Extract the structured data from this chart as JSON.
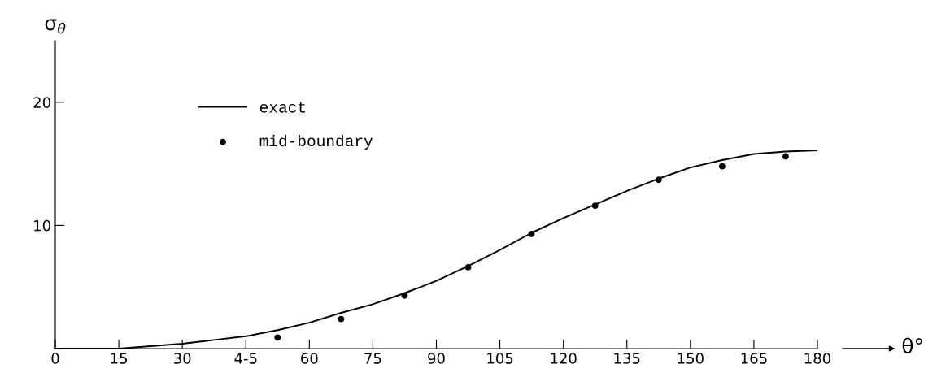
{
  "chart_data": {
    "type": "line",
    "xlabel": "θ°",
    "ylabel": "σ$_{θ}$",
    "xlim": [
      0,
      180
    ],
    "ylim": [
      0,
      25
    ],
    "xticks": [
      0,
      15,
      30,
      {
        "value": 45,
        "label": "4-5"
      },
      60,
      75,
      90,
      105,
      120,
      135,
      150,
      165,
      180
    ],
    "yticks": [
      {
        "value": 0,
        "label": null
      },
      10,
      20
    ],
    "legend": "top left",
    "grid": false,
    "series": [
      {
        "name": "exact",
        "color": "#000000",
        "marker": "none",
        "line_style": "solid",
        "x": [
          0,
          15,
          22.5,
          30,
          37.5,
          45,
          52.5,
          60,
          67.5,
          75,
          82.5,
          90,
          97.5,
          105,
          112.5,
          120,
          127.5,
          135,
          142.5,
          150,
          157.5,
          165,
          172.5,
          180
        ],
        "values": [
          0,
          0,
          0.2,
          0.4,
          0.7,
          1.0,
          1.5,
          2.1,
          2.9,
          3.6,
          4.5,
          5.5,
          6.7,
          8.0,
          9.4,
          10.6,
          11.7,
          12.8,
          13.8,
          14.7,
          15.3,
          15.8,
          16.0,
          16.1
        ]
      },
      {
        "name": "mid-boundary",
        "type": "scatter",
        "color": "#000000",
        "marker": "circle",
        "x": [
          52.5,
          67.5,
          82.5,
          97.5,
          112.5,
          127.5,
          142.5,
          157.5,
          172.5
        ],
        "values": [
          0.9,
          2.4,
          4.3,
          6.6,
          9.3,
          11.6,
          13.7,
          14.8,
          15.6
        ]
      }
    ]
  }
}
